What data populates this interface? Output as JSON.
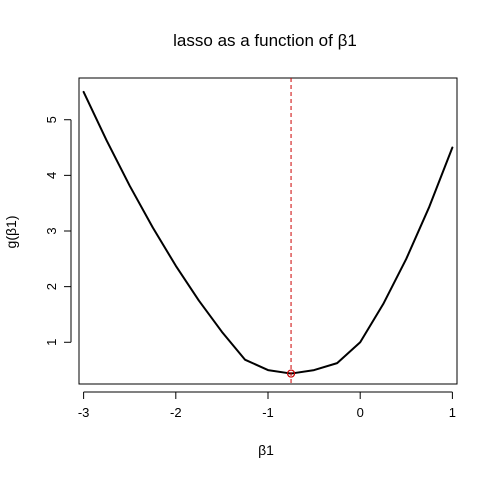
{
  "chart_data": {
    "type": "line",
    "title": "lasso as a function of β1",
    "xlabel": "β1",
    "ylabel": "g(β1)",
    "xlim": [
      -3.05,
      1.05
    ],
    "ylim": [
      0.25,
      5.75
    ],
    "xticks": [
      -3,
      -2,
      -1,
      0,
      1
    ],
    "yticks": [
      1,
      2,
      3,
      4,
      5
    ],
    "series": [
      {
        "color": "#000000",
        "x": [
          -3.0,
          -2.75,
          -2.5,
          -2.25,
          -2.0,
          -1.75,
          -1.5,
          -1.25,
          -1.0,
          -0.75,
          -0.5,
          -0.25,
          0.0,
          0.25,
          0.5,
          0.75,
          1.0
        ],
        "y": [
          5.5,
          4.625,
          3.8125,
          3.0625,
          2.375,
          1.75,
          1.1875,
          0.6875,
          0.5,
          0.4375,
          0.5,
          0.625,
          1.0,
          1.6875,
          2.5,
          3.4375,
          4.5
        ]
      }
    ],
    "vline": {
      "x": -0.75,
      "color": "#cc0000",
      "style": "dashed"
    },
    "minimum_point": {
      "x": -0.75,
      "y": 0.4375,
      "color": "#cc0000",
      "marker": "open-circle"
    },
    "grid": false,
    "legend": "none"
  }
}
